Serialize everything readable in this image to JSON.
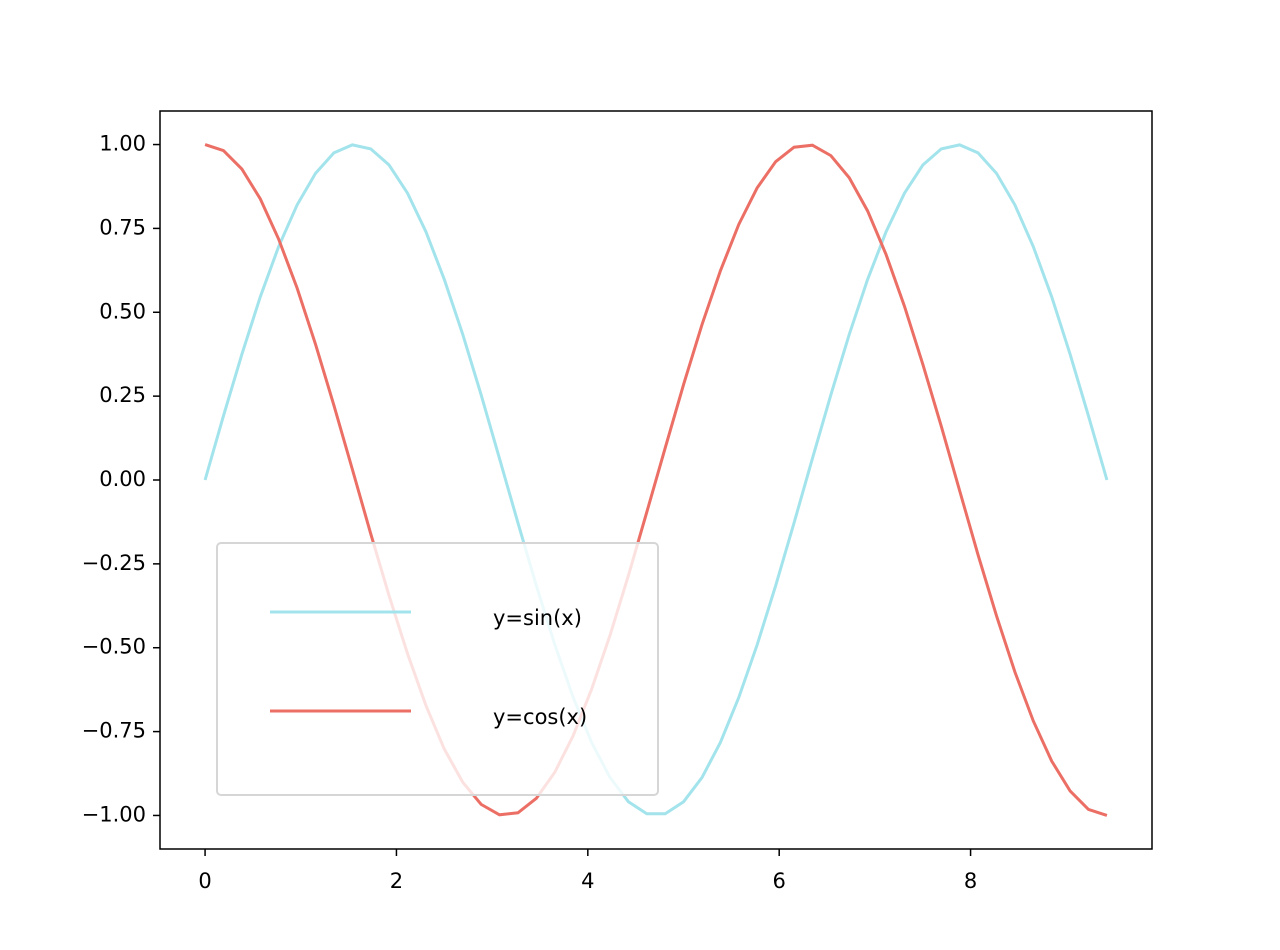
{
  "chart_data": {
    "type": "line",
    "x": [
      0,
      0.192,
      0.385,
      0.577,
      0.769,
      0.962,
      1.154,
      1.346,
      1.539,
      1.731,
      1.923,
      2.116,
      2.308,
      2.5,
      2.693,
      2.885,
      3.077,
      3.27,
      3.462,
      3.655,
      3.847,
      4.039,
      4.232,
      4.424,
      4.616,
      4.809,
      5.001,
      5.193,
      5.386,
      5.578,
      5.77,
      5.963,
      6.155,
      6.347,
      6.54,
      6.732,
      6.924,
      7.117,
      7.309,
      7.501,
      7.694,
      7.886,
      8.078,
      8.271,
      8.463,
      8.655,
      8.848,
      9.04,
      9.232,
      9.425
    ],
    "series": [
      {
        "name": "y=sin(x)",
        "color": "#a3e4ec",
        "values": [
          0,
          0.191,
          0.375,
          0.546,
          0.696,
          0.82,
          0.914,
          0.975,
          0.999,
          0.987,
          0.939,
          0.855,
          0.74,
          0.598,
          0.434,
          0.254,
          0.064,
          -0.128,
          -0.315,
          -0.491,
          -0.648,
          -0.782,
          -0.887,
          -0.959,
          -0.995,
          -0.995,
          -0.959,
          -0.887,
          -0.782,
          -0.648,
          -0.491,
          -0.315,
          -0.128,
          0.064,
          0.254,
          0.434,
          0.598,
          0.74,
          0.855,
          0.939,
          0.987,
          0.999,
          0.975,
          0.914,
          0.82,
          0.696,
          0.546,
          0.375,
          0.191,
          0
        ]
      },
      {
        "name": "y=cos(x)",
        "color": "#ec6f66",
        "values": [
          1,
          0.982,
          0.927,
          0.838,
          0.718,
          0.572,
          0.405,
          0.223,
          0.032,
          -0.16,
          -0.345,
          -0.518,
          -0.672,
          -0.802,
          -0.901,
          -0.967,
          -0.998,
          -0.992,
          -0.949,
          -0.871,
          -0.762,
          -0.624,
          -0.463,
          -0.285,
          -0.096,
          0.096,
          0.285,
          0.463,
          0.624,
          0.762,
          0.871,
          0.949,
          0.992,
          0.998,
          0.967,
          0.901,
          0.802,
          0.672,
          0.518,
          0.345,
          0.16,
          -0.032,
          -0.223,
          -0.405,
          -0.572,
          -0.718,
          -0.838,
          -0.927,
          -0.982,
          -1
        ]
      }
    ],
    "xlim": [
      -0.471,
      9.896
    ],
    "ylim": [
      -1.1,
      1.1
    ],
    "xticks": [
      0,
      2,
      4,
      6,
      8
    ],
    "yticks": [
      {
        "value": -1,
        "label": "−1.00"
      },
      {
        "value": -0.75,
        "label": "−0.75"
      },
      {
        "value": -0.5,
        "label": "−0.50"
      },
      {
        "value": -0.25,
        "label": "−0.25"
      },
      {
        "value": 0,
        "label": "0.00"
      },
      {
        "value": 0.25,
        "label": "0.25"
      },
      {
        "value": 0.5,
        "label": "0.50"
      },
      {
        "value": 0.75,
        "label": "0.75"
      },
      {
        "value": 1,
        "label": "1.00"
      }
    ],
    "legend": "lower left",
    "grid": false
  }
}
